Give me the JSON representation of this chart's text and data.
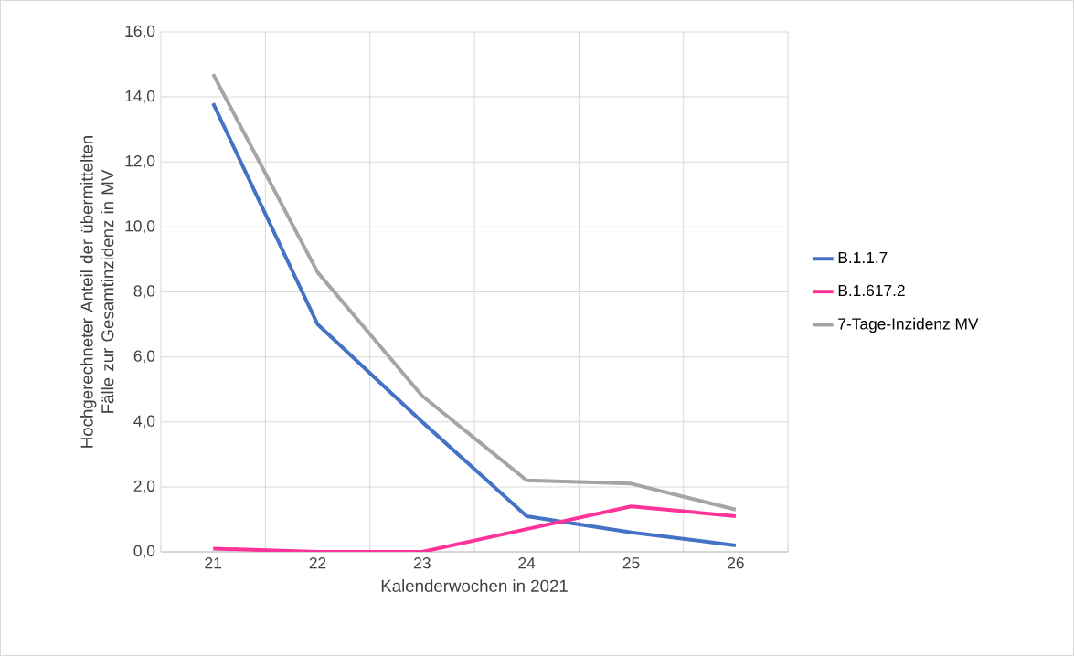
{
  "chart_data": {
    "type": "line",
    "xlabel": "Kalenderwochen in 2021",
    "ylabel": "Hochgerechneter Anteil der übermittelten Fälle zur Gesamtinzidenz in MV",
    "categories": [
      "21",
      "22",
      "23",
      "24",
      "25",
      "26"
    ],
    "series": [
      {
        "name": "B.1.1.7",
        "color": "#4472c4",
        "values": [
          13.8,
          7.0,
          4.0,
          1.1,
          0.6,
          0.2
        ]
      },
      {
        "name": "B.1.617.2",
        "color": "#ff3399",
        "values": [
          0.1,
          0.0,
          0.0,
          0.7,
          1.4,
          1.1
        ]
      },
      {
        "name": "7-Tage-Inzidenz MV",
        "color": "#a5a5a5",
        "values": [
          14.7,
          8.6,
          4.8,
          2.2,
          2.1,
          1.3
        ]
      }
    ],
    "ylim": [
      0,
      16
    ],
    "yticks": [
      {
        "value": 0,
        "label": "0,0"
      },
      {
        "value": 2,
        "label": "2,0"
      },
      {
        "value": 4,
        "label": "4,0"
      },
      {
        "value": 6,
        "label": "6,0"
      },
      {
        "value": 8,
        "label": "8,0"
      },
      {
        "value": 10,
        "label": "10,0"
      },
      {
        "value": 12,
        "label": "12,0"
      },
      {
        "value": 14,
        "label": "14,0"
      },
      {
        "value": 16,
        "label": "16,0"
      }
    ],
    "grid": true,
    "legend": "right",
    "marker": "none",
    "line_style": "solid"
  }
}
